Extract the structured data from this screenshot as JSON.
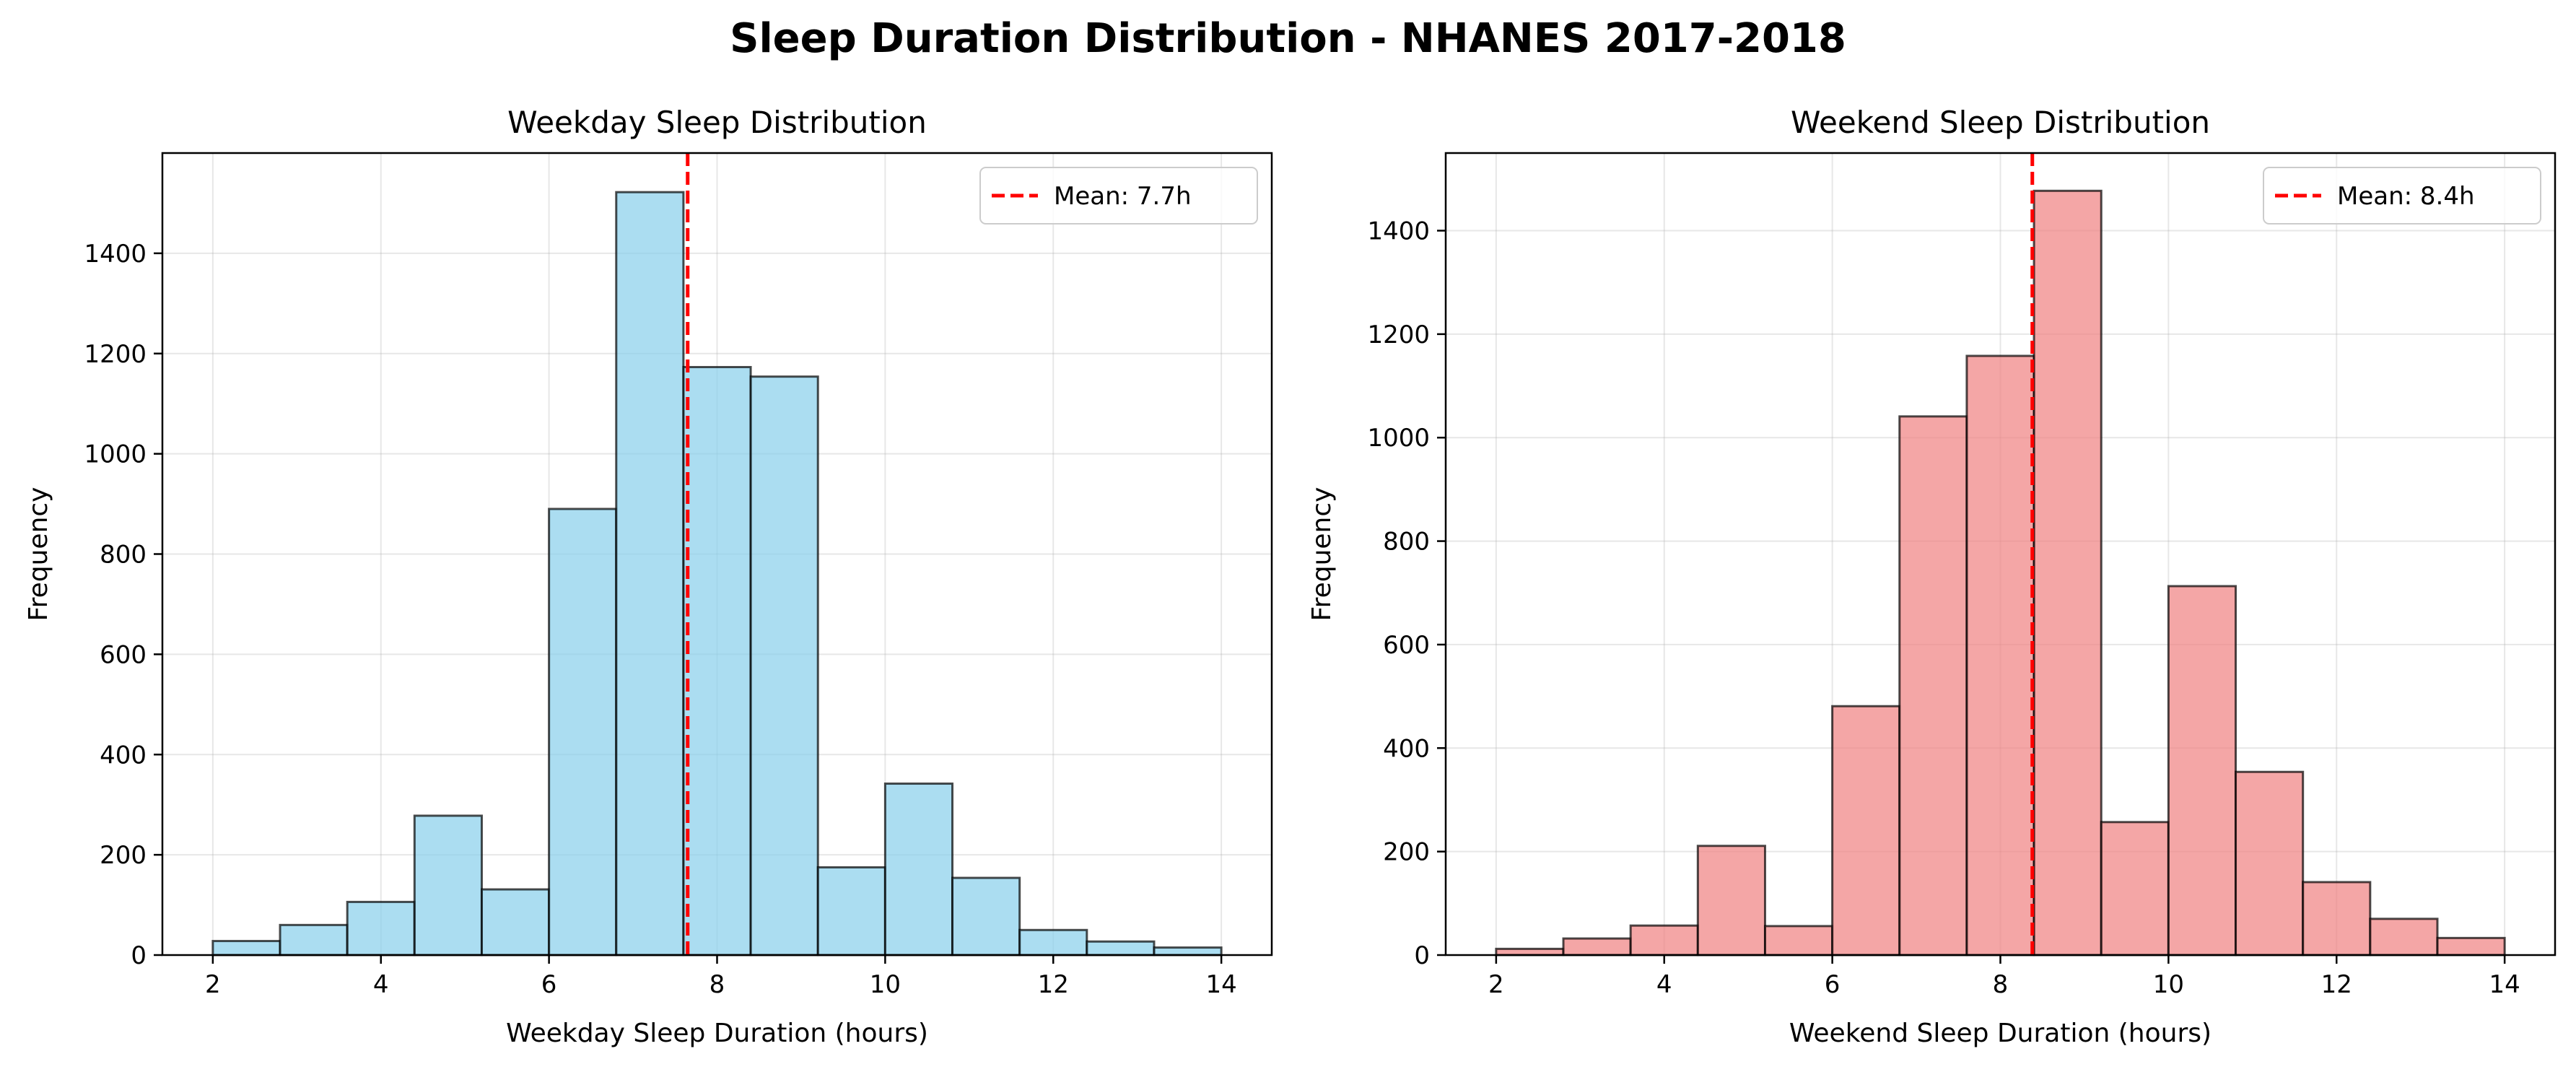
{
  "suptitle": "Sleep Duration Distribution - NHANES 2017-2018",
  "chart_data": [
    {
      "type": "bar",
      "subtype": "histogram",
      "title": "Weekday Sleep Distribution",
      "xlabel": "Weekday Sleep Duration (hours)",
      "ylabel": "Frequency",
      "bin_edges": [
        2.0,
        2.8,
        3.6,
        4.4,
        5.2,
        6.0,
        6.8,
        7.6,
        8.4,
        9.2,
        10.0,
        10.8,
        11.6,
        12.4,
        13.2,
        14.0
      ],
      "values": [
        28,
        60,
        106,
        278,
        131,
        890,
        1522,
        1173,
        1154,
        175,
        342,
        154,
        50,
        27,
        15
      ],
      "xlim": [
        1.4,
        14.6
      ],
      "ylim": [
        0,
        1600
      ],
      "xticks": [
        2,
        4,
        6,
        8,
        10,
        12,
        14
      ],
      "yticks": [
        0,
        200,
        400,
        600,
        800,
        1000,
        1200,
        1400
      ],
      "bar_color": "#87ceeb",
      "edge_color": "#000000",
      "mean": 7.65,
      "mean_color": "#ff0000",
      "legend": [
        {
          "label": "Mean: 7.7h",
          "style": "dashed"
        }
      ],
      "legend_position": "upper right",
      "grid": true
    },
    {
      "type": "bar",
      "subtype": "histogram",
      "title": "Weekend Sleep Distribution",
      "xlabel": "Weekend Sleep Duration (hours)",
      "ylabel": "Frequency",
      "bin_edges": [
        2.0,
        2.8,
        3.6,
        4.4,
        5.2,
        6.0,
        6.8,
        7.6,
        8.4,
        9.2,
        10.0,
        10.8,
        11.6,
        12.4,
        13.2,
        14.0
      ],
      "values": [
        12,
        32,
        57,
        211,
        56,
        481,
        1041,
        1158,
        1477,
        257,
        713,
        354,
        141,
        70,
        33
      ],
      "xlim": [
        1.4,
        14.6
      ],
      "ylim": [
        0,
        1550
      ],
      "xticks": [
        2,
        4,
        6,
        8,
        10,
        12,
        14
      ],
      "yticks": [
        0,
        200,
        400,
        600,
        800,
        1000,
        1200,
        1400
      ],
      "bar_color": "#f08080",
      "edge_color": "#000000",
      "mean": 8.38,
      "mean_color": "#ff0000",
      "legend": [
        {
          "label": "Mean: 8.4h",
          "style": "dashed"
        }
      ],
      "legend_position": "upper right",
      "grid": true
    }
  ]
}
